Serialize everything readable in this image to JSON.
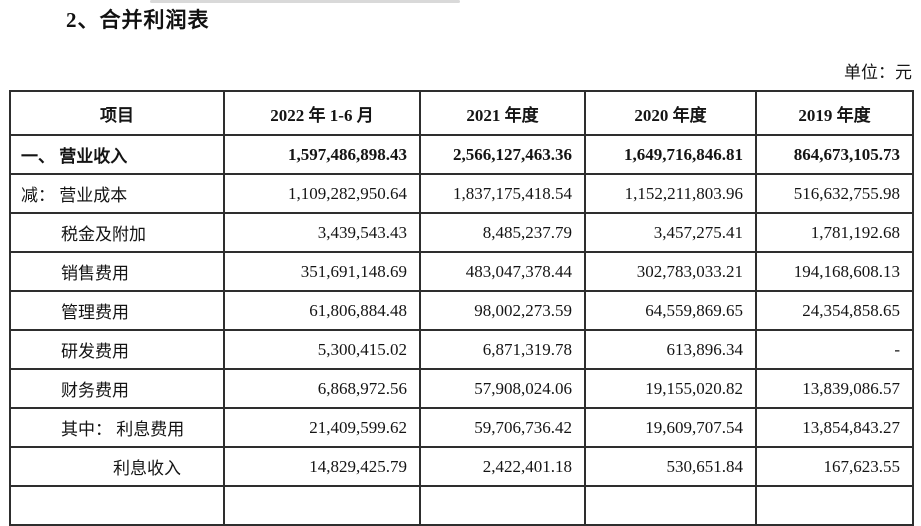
{
  "page": {
    "title": "2、合并利润表",
    "unit_label": "单位：元"
  },
  "table": {
    "columns": [
      "项目",
      "2022 年 1-6 月",
      "2021 年度",
      "2020 年度",
      "2019 年度"
    ],
    "rows": [
      {
        "label": "一、 营业收入",
        "indent": 0,
        "bold": true,
        "values": [
          "1,597,486,898.43",
          "2,566,127,463.36",
          "1,649,716,846.81",
          "864,673,105.73"
        ]
      },
      {
        "label": "减： 营业成本",
        "indent": 0,
        "bold": false,
        "values": [
          "1,109,282,950.64",
          "1,837,175,418.54",
          "1,152,211,803.96",
          "516,632,755.98"
        ]
      },
      {
        "label": "税金及附加",
        "indent": 1,
        "bold": false,
        "values": [
          "3,439,543.43",
          "8,485,237.79",
          "3,457,275.41",
          "1,781,192.68"
        ]
      },
      {
        "label": "销售费用",
        "indent": 1,
        "bold": false,
        "values": [
          "351,691,148.69",
          "483,047,378.44",
          "302,783,033.21",
          "194,168,608.13"
        ]
      },
      {
        "label": "管理费用",
        "indent": 1,
        "bold": false,
        "values": [
          "61,806,884.48",
          "98,002,273.59",
          "64,559,869.65",
          "24,354,858.65"
        ]
      },
      {
        "label": "研发费用",
        "indent": 1,
        "bold": false,
        "values": [
          "5,300,415.02",
          "6,871,319.78",
          "613,896.34",
          "-"
        ]
      },
      {
        "label": "财务费用",
        "indent": 1,
        "bold": false,
        "values": [
          "6,868,972.56",
          "57,908,024.06",
          "19,155,020.82",
          "13,839,086.57"
        ]
      },
      {
        "label": "其中： 利息费用",
        "indent": 1,
        "bold": false,
        "values": [
          "21,409,599.62",
          "59,706,736.42",
          "19,609,707.54",
          "13,854,843.27"
        ]
      },
      {
        "label": "利息收入",
        "indent": 2,
        "bold": false,
        "values": [
          "14,829,425.79",
          "2,422,401.18",
          "530,651.84",
          "167,623.55"
        ]
      },
      {
        "label": "",
        "indent": 0,
        "bold": false,
        "values": [
          "",
          "",
          "",
          ""
        ]
      }
    ]
  },
  "colors": {
    "text": "#1a1a1a",
    "border": "#2e2e2e",
    "background": "#ffffff"
  }
}
